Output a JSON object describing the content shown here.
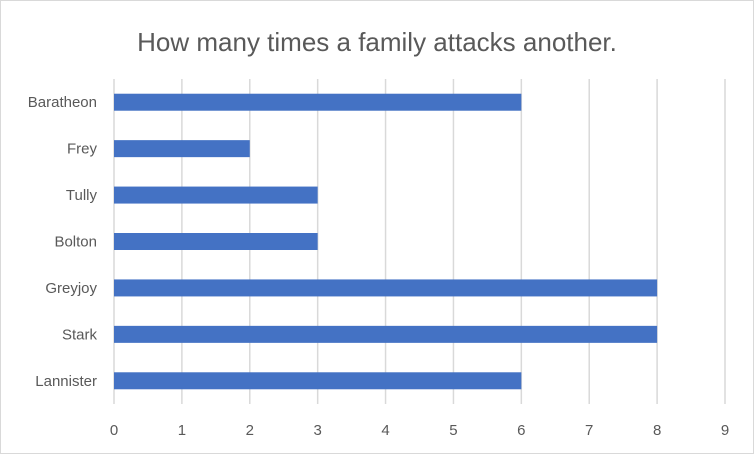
{
  "chart_data": {
    "type": "bar",
    "orientation": "horizontal",
    "title": "How many times a family attacks another.",
    "categories": [
      "Baratheon",
      "Frey",
      "Tully",
      "Bolton",
      "Greyjoy",
      "Stark",
      "Lannister"
    ],
    "values": [
      6,
      2,
      3,
      3,
      8,
      8,
      6
    ],
    "xlim": [
      0,
      9
    ],
    "x_ticks": [
      "0",
      "1",
      "2",
      "3",
      "4",
      "5",
      "6",
      "7",
      "8",
      "9"
    ],
    "grid": "vertical",
    "legend": "none",
    "bar_color": "#4472c4"
  }
}
